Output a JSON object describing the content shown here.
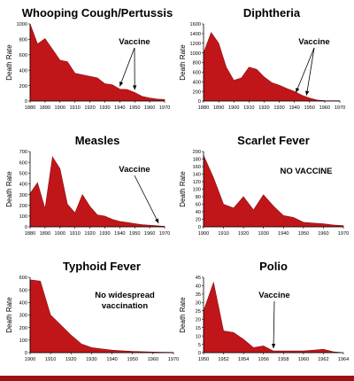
{
  "chart_data": [
    {
      "type": "area",
      "title": "Whooping Cough/Pertussis",
      "ylabel": "Death Rate",
      "x": [
        1880,
        1885,
        1890,
        1895,
        1900,
        1905,
        1910,
        1915,
        1920,
        1925,
        1930,
        1935,
        1940,
        1945,
        1950,
        1955,
        1960,
        1965,
        1970
      ],
      "values": [
        1000,
        740,
        810,
        670,
        530,
        510,
        360,
        340,
        320,
        300,
        225,
        210,
        155,
        150,
        110,
        60,
        40,
        25,
        20
      ],
      "xticks": [
        1880,
        1890,
        1900,
        1910,
        1920,
        1930,
        1940,
        1950,
        1960,
        1970
      ],
      "yticks": [
        0,
        200,
        400,
        600,
        800,
        1000
      ],
      "xlim": [
        1880,
        1970
      ],
      "ylim": [
        0,
        1000
      ],
      "annotation": {
        "text": "Vaccine",
        "arrows": [
          1940,
          1950
        ]
      },
      "color": "#c0161a"
    },
    {
      "type": "area",
      "title": "Diphtheria",
      "ylabel": "Death Rate",
      "x": [
        1880,
        1885,
        1890,
        1895,
        1900,
        1905,
        1910,
        1915,
        1920,
        1925,
        1930,
        1935,
        1940,
        1945,
        1950,
        1955,
        1960,
        1965,
        1970
      ],
      "values": [
        1000,
        1420,
        1200,
        700,
        430,
        480,
        700,
        660,
        500,
        380,
        330,
        260,
        200,
        120,
        60,
        20,
        10,
        5,
        5
      ],
      "xticks": [
        1880,
        1890,
        1900,
        1910,
        1920,
        1930,
        1940,
        1950,
        1960,
        1970
      ],
      "yticks": [
        0,
        200,
        400,
        600,
        800,
        1000,
        1200,
        1400,
        1600
      ],
      "xlim": [
        1880,
        1970
      ],
      "ylim": [
        0,
        1600
      ],
      "annotation": {
        "text": "Vaccine",
        "arrows": [
          1941,
          1948
        ]
      },
      "color": "#c0161a"
    },
    {
      "type": "area",
      "title": "Measles",
      "ylabel": "Death Rate",
      "x": [
        1880,
        1885,
        1890,
        1895,
        1900,
        1905,
        1910,
        1915,
        1920,
        1925,
        1930,
        1935,
        1940,
        1945,
        1950,
        1955,
        1960,
        1965,
        1970
      ],
      "values": [
        310,
        410,
        170,
        650,
        540,
        210,
        130,
        300,
        190,
        110,
        100,
        70,
        50,
        40,
        30,
        20,
        15,
        10,
        5
      ],
      "xticks": [
        1880,
        1890,
        1900,
        1910,
        1920,
        1930,
        1940,
        1950,
        1960,
        1970
      ],
      "yticks": [
        0,
        100,
        200,
        300,
        400,
        500,
        600,
        700
      ],
      "xlim": [
        1880,
        1970
      ],
      "ylim": [
        0,
        700
      ],
      "annotation": {
        "text": "Vaccine",
        "arrows": [
          1966
        ]
      },
      "color": "#c0161a"
    },
    {
      "type": "area",
      "title": "Scarlet Fever",
      "ylabel": "Death Rate",
      "x": [
        1900,
        1905,
        1910,
        1915,
        1920,
        1925,
        1930,
        1935,
        1940,
        1945,
        1950,
        1955,
        1960,
        1965,
        1970
      ],
      "values": [
        190,
        130,
        60,
        50,
        80,
        45,
        85,
        55,
        30,
        25,
        12,
        10,
        8,
        5,
        3
      ],
      "xticks": [
        1900,
        1910,
        1920,
        1930,
        1940,
        1950,
        1960,
        1970
      ],
      "yticks": [
        0,
        20,
        40,
        60,
        80,
        100,
        120,
        140,
        160,
        180,
        200
      ],
      "xlim": [
        1900,
        1970
      ],
      "ylim": [
        0,
        200
      ],
      "annotation": {
        "text": "NO VACCINE",
        "arrows": []
      },
      "color": "#c0161a"
    },
    {
      "type": "area",
      "title": "Typhoid Fever",
      "ylabel": "Death Rate",
      "x": [
        1900,
        1905,
        1910,
        1915,
        1920,
        1925,
        1930,
        1935,
        1940,
        1945,
        1950,
        1955,
        1960,
        1965,
        1970
      ],
      "values": [
        580,
        570,
        300,
        220,
        140,
        70,
        40,
        30,
        20,
        15,
        10,
        8,
        5,
        3,
        2
      ],
      "xticks": [
        1900,
        1910,
        1920,
        1930,
        1940,
        1950,
        1960,
        1970
      ],
      "yticks": [
        0,
        100,
        200,
        300,
        400,
        500,
        600
      ],
      "xlim": [
        1900,
        1970
      ],
      "ylim": [
        0,
        600
      ],
      "annotation": {
        "text": "No widespread\nvaccination",
        "arrows": []
      },
      "color": "#c0161a"
    },
    {
      "type": "area",
      "title": "Polio",
      "ylabel": "Death Rate",
      "x": [
        1950,
        1951,
        1952,
        1953,
        1954,
        1955,
        1956,
        1957,
        1958,
        1959,
        1960,
        1961,
        1962,
        1963,
        1964
      ],
      "values": [
        25,
        42,
        13,
        12,
        8,
        3,
        4,
        1,
        1,
        1,
        1,
        1.5,
        2,
        0.5,
        0
      ],
      "xticks": [
        1950,
        1952,
        1954,
        1956,
        1958,
        1960,
        1962,
        1964
      ],
      "yticks": [
        0,
        5,
        10,
        15,
        20,
        25,
        30,
        35,
        40,
        45
      ],
      "xlim": [
        1950,
        1964
      ],
      "ylim": [
        0,
        45
      ],
      "annotation": {
        "text": "Vaccine",
        "arrows": [
          1957
        ]
      },
      "color": "#c0161a"
    }
  ]
}
